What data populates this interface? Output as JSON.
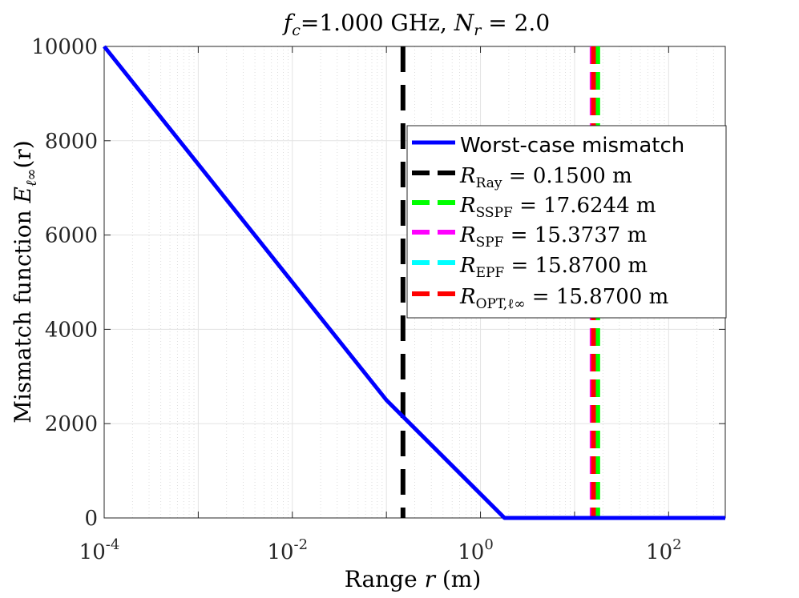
{
  "chart_data": {
    "type": "line",
    "title": "f_c=1.000 GHz, N_r = 2.0",
    "title_parts": {
      "fc_sym": "f",
      "fc_sub": "c",
      "fc_val": "=1.000 GHz, ",
      "nr_sym": "N",
      "nr_sub": "r",
      "nr_val": " = 2.0"
    },
    "xlabel": "Range r (m)",
    "xlabel_parts": {
      "pre": "Range ",
      "var": "r",
      "post": " (m)"
    },
    "ylabel": "Mismatch function E_ℓ∞(r)",
    "ylabel_parts": {
      "pre": "Mismatch function ",
      "var": "E",
      "sub": "ℓ∞",
      "arg": "(r)"
    },
    "x_scale": "log",
    "xlim": [
      0.0001,
      400
    ],
    "ylim": [
      0,
      10000
    ],
    "x_ticks": [
      {
        "base": "10",
        "exp": "-4",
        "value": 0.0001
      },
      {
        "base": "10",
        "exp": "-2",
        "value": 0.01
      },
      {
        "base": "10",
        "exp": "0",
        "value": 1
      },
      {
        "base": "10",
        "exp": "2",
        "value": 100
      }
    ],
    "y_ticks": [
      "0",
      "2000",
      "4000",
      "6000",
      "8000",
      "10000"
    ],
    "y_tick_values": [
      0,
      2000,
      4000,
      6000,
      8000,
      10000
    ],
    "grid": true,
    "legend_position": "right",
    "series": [
      {
        "name": "Worst-case mismatch",
        "color": "#0000ff",
        "style": "solid",
        "x": [
          0.0001,
          0.1,
          1.8,
          400
        ],
        "y": [
          10000,
          2500,
          0,
          0
        ]
      },
      {
        "name": "R_Ray = 0.1500 m",
        "color": "#000000",
        "style": "dashed",
        "vline_x": 0.15
      },
      {
        "name": "R_SSPF = 17.6244 m",
        "color": "#00ff00",
        "style": "dashed",
        "vline_x": 17.6244
      },
      {
        "name": "R_SPF = 15.3737 m",
        "color": "#ff00ff",
        "style": "dashed",
        "vline_x": 15.3737
      },
      {
        "name": "R_EPF = 15.8700 m",
        "color": "#00ffff",
        "style": "dashed",
        "vline_x": 15.87
      },
      {
        "name": "R_OPT,ℓ∞ = 15.8700 m",
        "color": "#ff0000",
        "style": "dashed",
        "vline_x": 15.87
      }
    ],
    "legend": [
      {
        "sym": "",
        "sub": "",
        "text": "Worst-case mismatch",
        "font": "sans"
      },
      {
        "sym": "R",
        "sub": "Ray",
        "text": " = 0.1500 m",
        "font": "serif"
      },
      {
        "sym": "R",
        "sub": "SSPF",
        "text": " = 17.6244 m",
        "font": "serif"
      },
      {
        "sym": "R",
        "sub": "SPF",
        "text": " = 15.3737 m",
        "font": "serif"
      },
      {
        "sym": "R",
        "sub": "EPF",
        "text": " = 15.8700 m",
        "font": "serif"
      },
      {
        "sym": "R",
        "sub": "OPT,ℓ∞",
        "text": " = 15.8700 m",
        "font": "serif"
      }
    ]
  }
}
